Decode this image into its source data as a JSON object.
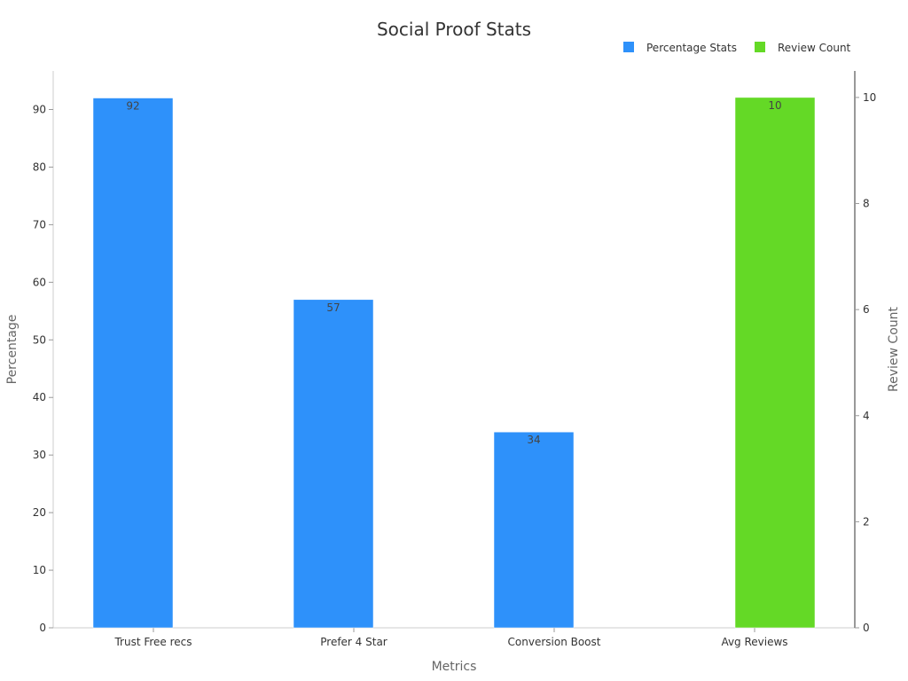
{
  "chart_data": {
    "type": "bar",
    "title": "Social Proof Stats",
    "xlabel": "Metrics",
    "ylabel": "Percentage",
    "y2label": "Review Count",
    "categories": [
      "Trust Free recs",
      "Prefer 4 Star",
      "Conversion Boost",
      "Avg Reviews"
    ],
    "ylim": [
      0,
      96.7
    ],
    "y2lim": [
      0,
      10.5
    ],
    "yticks": [
      0,
      10,
      20,
      30,
      40,
      50,
      60,
      70,
      80,
      90
    ],
    "y2ticks": [
      0,
      2,
      4,
      6,
      8,
      10
    ],
    "legend_position": "top-right",
    "grid": false,
    "series": [
      {
        "name": "Percentage Stats",
        "axis": "left",
        "color": "#2E91FA",
        "values": [
          92,
          57,
          34,
          null
        ]
      },
      {
        "name": "Review Count",
        "axis": "right",
        "color": "#64D926",
        "values": [
          null,
          null,
          null,
          10
        ]
      }
    ]
  }
}
